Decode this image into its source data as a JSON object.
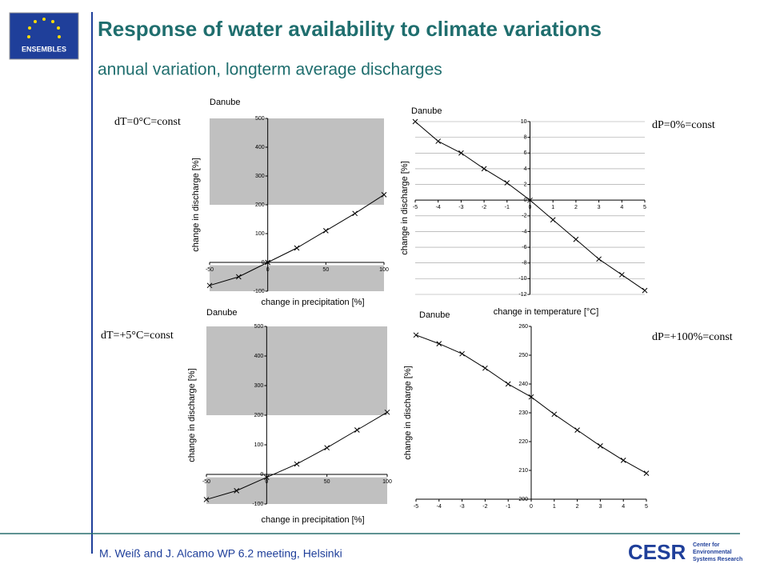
{
  "title": "Response of water availability to climate variations",
  "subtitle": "annual variation, longterm average discharges",
  "footer": "M. Weiß and J. Alcamo  WP 6.2 meeting, Helsinki",
  "logo_text": "ENSEMBLES",
  "cesr": {
    "name": "CESR",
    "lines": [
      "Center for",
      "Environmental",
      "Systems Research"
    ]
  },
  "chart_data": [
    {
      "type": "line",
      "title": "Danube",
      "annotation": "dT=0°C=const",
      "x_label": "change in precipitation [%]",
      "y_label": "change in discharge [%]",
      "x": [
        -50,
        -25,
        0,
        25,
        50,
        75,
        100
      ],
      "values": [
        -80,
        -50,
        0,
        50,
        110,
        170,
        235
      ],
      "xlim": [
        -50,
        100
      ],
      "ylim": [
        -100,
        500
      ],
      "xticks": [
        -50,
        0,
        50,
        100
      ],
      "yticks": [
        -100,
        0,
        100,
        200,
        300,
        400,
        500
      ],
      "grid": false,
      "color": "#000000"
    },
    {
      "type": "line",
      "title": "Danube",
      "annotation": "dP=0%=const",
      "x_label": "change in temperature [°C]",
      "y_label": "change in discharge [%]",
      "x": [
        -5,
        -4,
        -3,
        -2,
        -1,
        0,
        1,
        2,
        3,
        4,
        5
      ],
      "values": [
        10,
        7.5,
        6,
        4,
        2.2,
        0,
        -2.5,
        -5,
        -7.5,
        -9.5,
        -11.5
      ],
      "xlim": [
        -5,
        5
      ],
      "ylim": [
        -12,
        10
      ],
      "xticks": [
        -5,
        -4,
        -3,
        -2,
        -1,
        0,
        1,
        2,
        3,
        4,
        5
      ],
      "yticks": [
        -12,
        -10,
        -8,
        -6,
        -4,
        -2,
        0,
        2,
        4,
        6,
        8,
        10
      ],
      "grid": true,
      "color": "#000000"
    },
    {
      "type": "line",
      "title": "Danube",
      "annotation": "dT=+5°C=const",
      "x_label": "change in precipitation [%]",
      "y_label": "change in discharge [%]",
      "x": [
        -50,
        -25,
        0,
        25,
        50,
        75,
        100
      ],
      "values": [
        -85,
        -55,
        -10,
        35,
        90,
        150,
        210
      ],
      "xlim": [
        -50,
        100
      ],
      "ylim": [
        -100,
        500
      ],
      "xticks": [
        -50,
        0,
        50,
        100
      ],
      "yticks": [
        -100,
        0,
        100,
        200,
        300,
        400,
        500
      ],
      "grid": false,
      "color": "#000000"
    },
    {
      "type": "line",
      "title": "Danube",
      "annotation": "dP=+100%=const",
      "y_label": "change in discharge [%]",
      "x": [
        -5,
        -4,
        -3,
        -2,
        -1,
        0,
        1,
        2,
        3,
        4,
        5
      ],
      "values": [
        257,
        254,
        250.5,
        245.5,
        240,
        235.5,
        229.5,
        224,
        218.5,
        213.5,
        209
      ],
      "xlim": [
        -5,
        5
      ],
      "ylim": [
        200,
        260
      ],
      "xticks": [
        -5,
        -4,
        -3,
        -2,
        -1,
        0,
        1,
        2,
        3,
        4,
        5
      ],
      "yticks": [
        200,
        210,
        220,
        230,
        240,
        250,
        260
      ],
      "grid": false,
      "color": "#000000"
    }
  ]
}
